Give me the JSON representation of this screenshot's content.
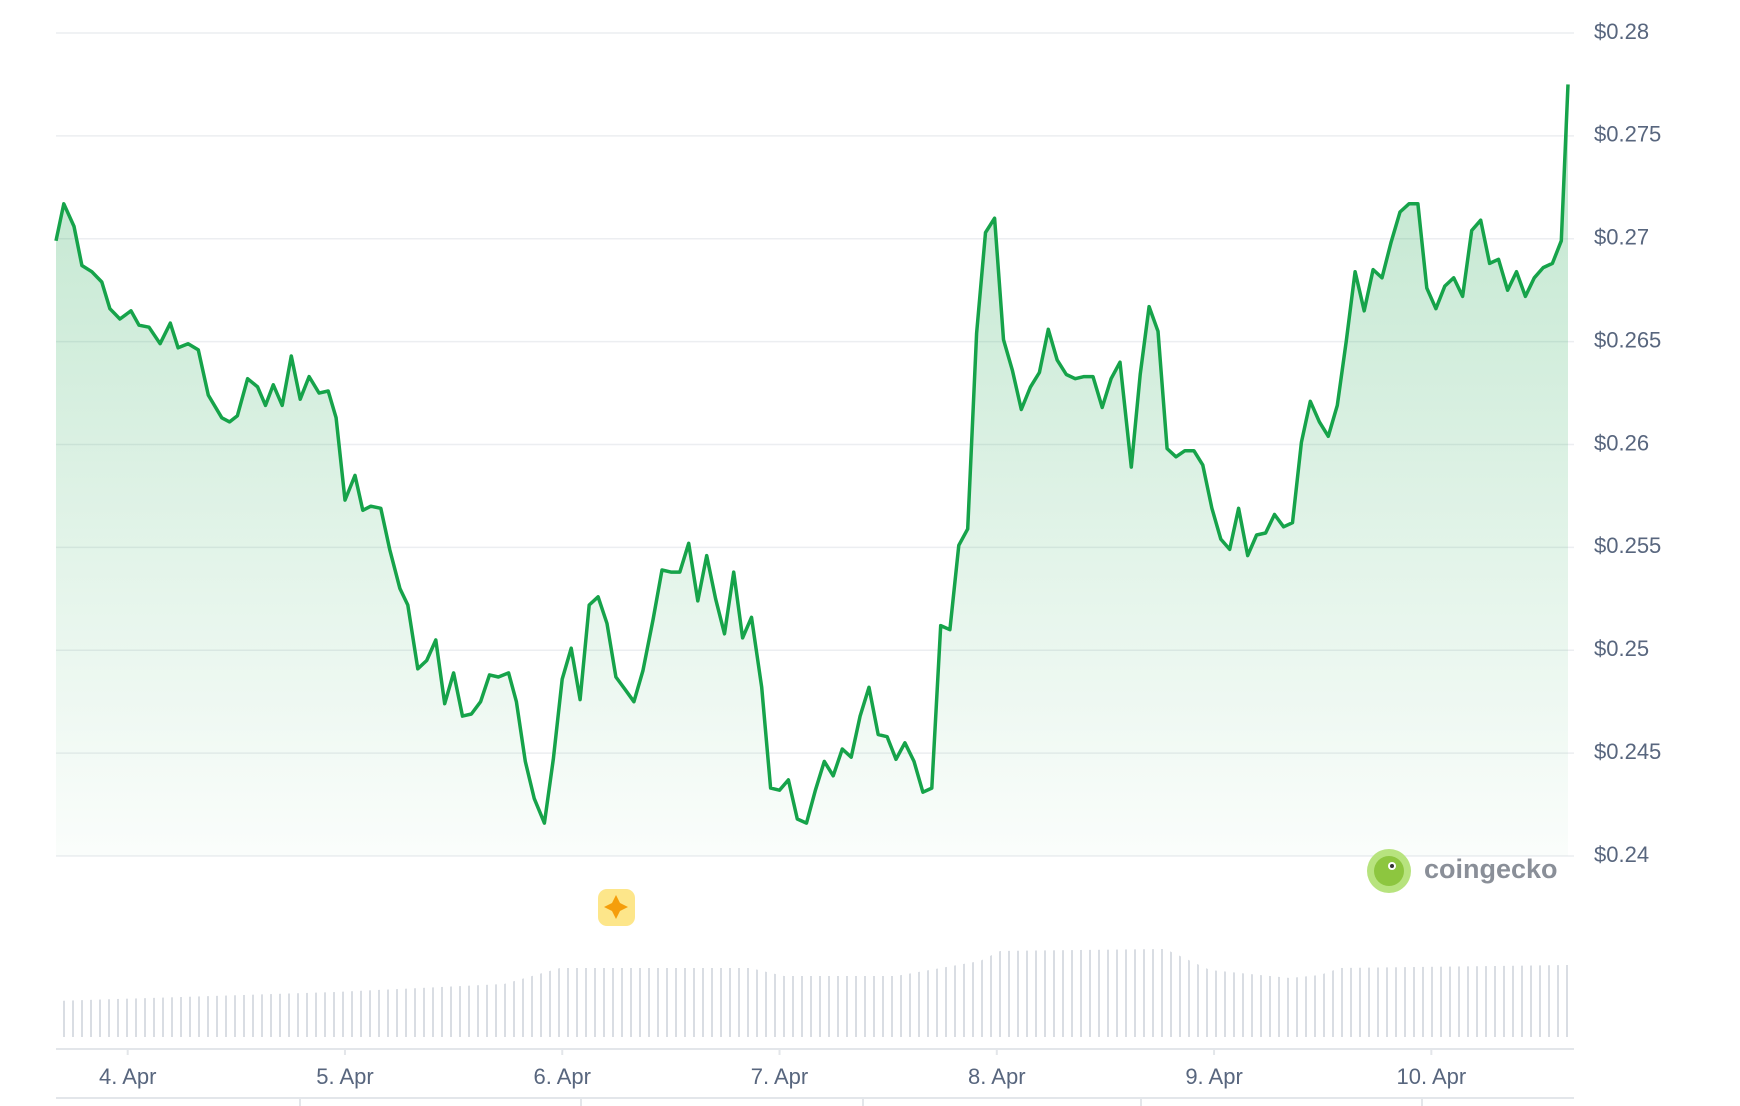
{
  "chart_data": {
    "type": "line",
    "color": "#16a34a",
    "grid": true,
    "x": [
      3.67,
      3.706,
      3.753,
      3.789,
      3.835,
      3.881,
      3.918,
      3.964,
      4.015,
      4.052,
      4.098,
      4.149,
      4.196,
      4.232,
      4.278,
      4.325,
      4.371,
      4.433,
      4.469,
      4.505,
      4.552,
      4.598,
      4.634,
      4.67,
      4.711,
      4.753,
      4.794,
      4.835,
      4.881,
      4.923,
      4.959,
      5.0,
      5.046,
      5.082,
      5.119,
      5.165,
      5.206,
      5.253,
      5.289,
      5.335,
      5.376,
      5.418,
      5.459,
      5.5,
      5.541,
      5.582,
      5.624,
      5.665,
      5.706,
      5.753,
      5.789,
      5.83,
      5.871,
      5.918,
      5.959,
      6.0,
      6.041,
      6.082,
      6.124,
      6.165,
      6.206,
      6.247,
      6.289,
      6.33,
      6.371,
      6.418,
      6.459,
      6.5,
      6.541,
      6.582,
      6.624,
      6.665,
      6.706,
      6.747,
      6.789,
      6.83,
      6.871,
      6.918,
      6.959,
      7.0,
      7.041,
      7.082,
      7.124,
      7.165,
      7.206,
      7.247,
      7.289,
      7.33,
      7.371,
      7.412,
      7.454,
      7.495,
      7.536,
      7.577,
      7.619,
      7.66,
      7.701,
      7.742,
      7.784,
      7.825,
      7.866,
      7.907,
      7.948,
      7.99,
      8.031,
      8.072,
      8.113,
      8.155,
      8.196,
      8.237,
      8.278,
      8.32,
      8.361,
      8.402,
      8.443,
      8.485,
      8.526,
      8.567,
      8.619,
      8.66,
      8.701,
      8.742,
      8.784,
      8.825,
      8.866,
      8.907,
      8.948,
      8.99,
      9.031,
      9.072,
      9.113,
      9.155,
      9.196,
      9.237,
      9.278,
      9.32,
      9.361,
      9.402,
      9.443,
      9.485,
      9.526,
      9.567,
      9.608,
      9.649,
      9.691,
      9.732,
      9.773,
      9.814,
      9.856,
      9.897,
      9.938,
      9.979,
      10.021,
      10.062,
      10.103,
      10.144,
      10.186,
      10.227,
      10.268,
      10.309,
      10.351,
      10.392,
      10.433,
      10.474,
      10.515,
      10.557,
      10.598,
      10.629
    ],
    "values": [
      0.2699,
      0.2717,
      0.2706,
      0.2687,
      0.2684,
      0.2679,
      0.2666,
      0.2661,
      0.2665,
      0.2658,
      0.2657,
      0.2649,
      0.2659,
      0.2647,
      0.2649,
      0.2646,
      0.2624,
      0.2613,
      0.2611,
      0.2614,
      0.2632,
      0.2628,
      0.2619,
      0.2629,
      0.2619,
      0.2643,
      0.2622,
      0.2633,
      0.2625,
      0.2626,
      0.2613,
      0.2573,
      0.2585,
      0.2568,
      0.257,
      0.2569,
      0.2549,
      0.253,
      0.2522,
      0.2491,
      0.2495,
      0.2505,
      0.2474,
      0.2489,
      0.2468,
      0.2469,
      0.2475,
      0.2488,
      0.2487,
      0.2489,
      0.2475,
      0.2446,
      0.2428,
      0.2416,
      0.2447,
      0.2486,
      0.2501,
      0.2476,
      0.2522,
      0.2526,
      0.2513,
      0.2487,
      0.2481,
      0.2475,
      0.249,
      0.2515,
      0.2539,
      0.2538,
      0.2538,
      0.2552,
      0.2524,
      0.2546,
      0.2525,
      0.2508,
      0.2538,
      0.2506,
      0.2516,
      0.2482,
      0.2433,
      0.2432,
      0.2437,
      0.2418,
      0.2416,
      0.2432,
      0.2446,
      0.2439,
      0.2452,
      0.2448,
      0.2468,
      0.2482,
      0.2459,
      0.2458,
      0.2447,
      0.2455,
      0.2446,
      0.2431,
      0.2433,
      0.2512,
      0.251,
      0.2551,
      0.2559,
      0.2654,
      0.2703,
      0.271,
      0.2651,
      0.2636,
      0.2617,
      0.2628,
      0.2635,
      0.2656,
      0.2641,
      0.2634,
      0.2632,
      0.2633,
      0.2633,
      0.2618,
      0.2632,
      0.264,
      0.2589,
      0.2634,
      0.2667,
      0.2655,
      0.2598,
      0.2594,
      0.2597,
      0.2597,
      0.259,
      0.2569,
      0.2554,
      0.2549,
      0.2569,
      0.2546,
      0.2556,
      0.2557,
      0.2566,
      0.256,
      0.2562,
      0.2601,
      0.2621,
      0.2611,
      0.2604,
      0.2619,
      0.265,
      0.2684,
      0.2665,
      0.2685,
      0.2681,
      0.2698,
      0.2713,
      0.2717,
      0.2717,
      0.2676,
      0.2666,
      0.2677,
      0.2681,
      0.2672,
      0.2704,
      0.2709,
      0.2688,
      0.269,
      0.2675,
      0.2684,
      0.2672,
      0.2681,
      0.2686,
      0.2688,
      0.2699,
      0.2775
    ],
    "xlim": [
      3.67,
      10.629
    ],
    "xticks": [
      {
        "value": 4,
        "label": "4. Apr"
      },
      {
        "value": 5,
        "label": "5. Apr"
      },
      {
        "value": 6,
        "label": "6. Apr"
      },
      {
        "value": 7,
        "label": "7. Apr"
      },
      {
        "value": 8,
        "label": "8. Apr"
      },
      {
        "value": 9,
        "label": "9. Apr"
      },
      {
        "value": 10,
        "label": "10. Apr"
      }
    ],
    "ylim": [
      0.24,
      0.28
    ],
    "yticks": [
      {
        "value": 0.24,
        "label": "$0.24"
      },
      {
        "value": 0.245,
        "label": "$0.245"
      },
      {
        "value": 0.25,
        "label": "$0.25"
      },
      {
        "value": 0.255,
        "label": "$0.255"
      },
      {
        "value": 0.26,
        "label": "$0.26"
      },
      {
        "value": 0.265,
        "label": "$0.265"
      },
      {
        "value": 0.27,
        "label": "$0.27"
      },
      {
        "value": 0.275,
        "label": "$0.275"
      },
      {
        "value": 0.28,
        "label": "$0.28"
      }
    ],
    "watermark": "coingecko"
  }
}
